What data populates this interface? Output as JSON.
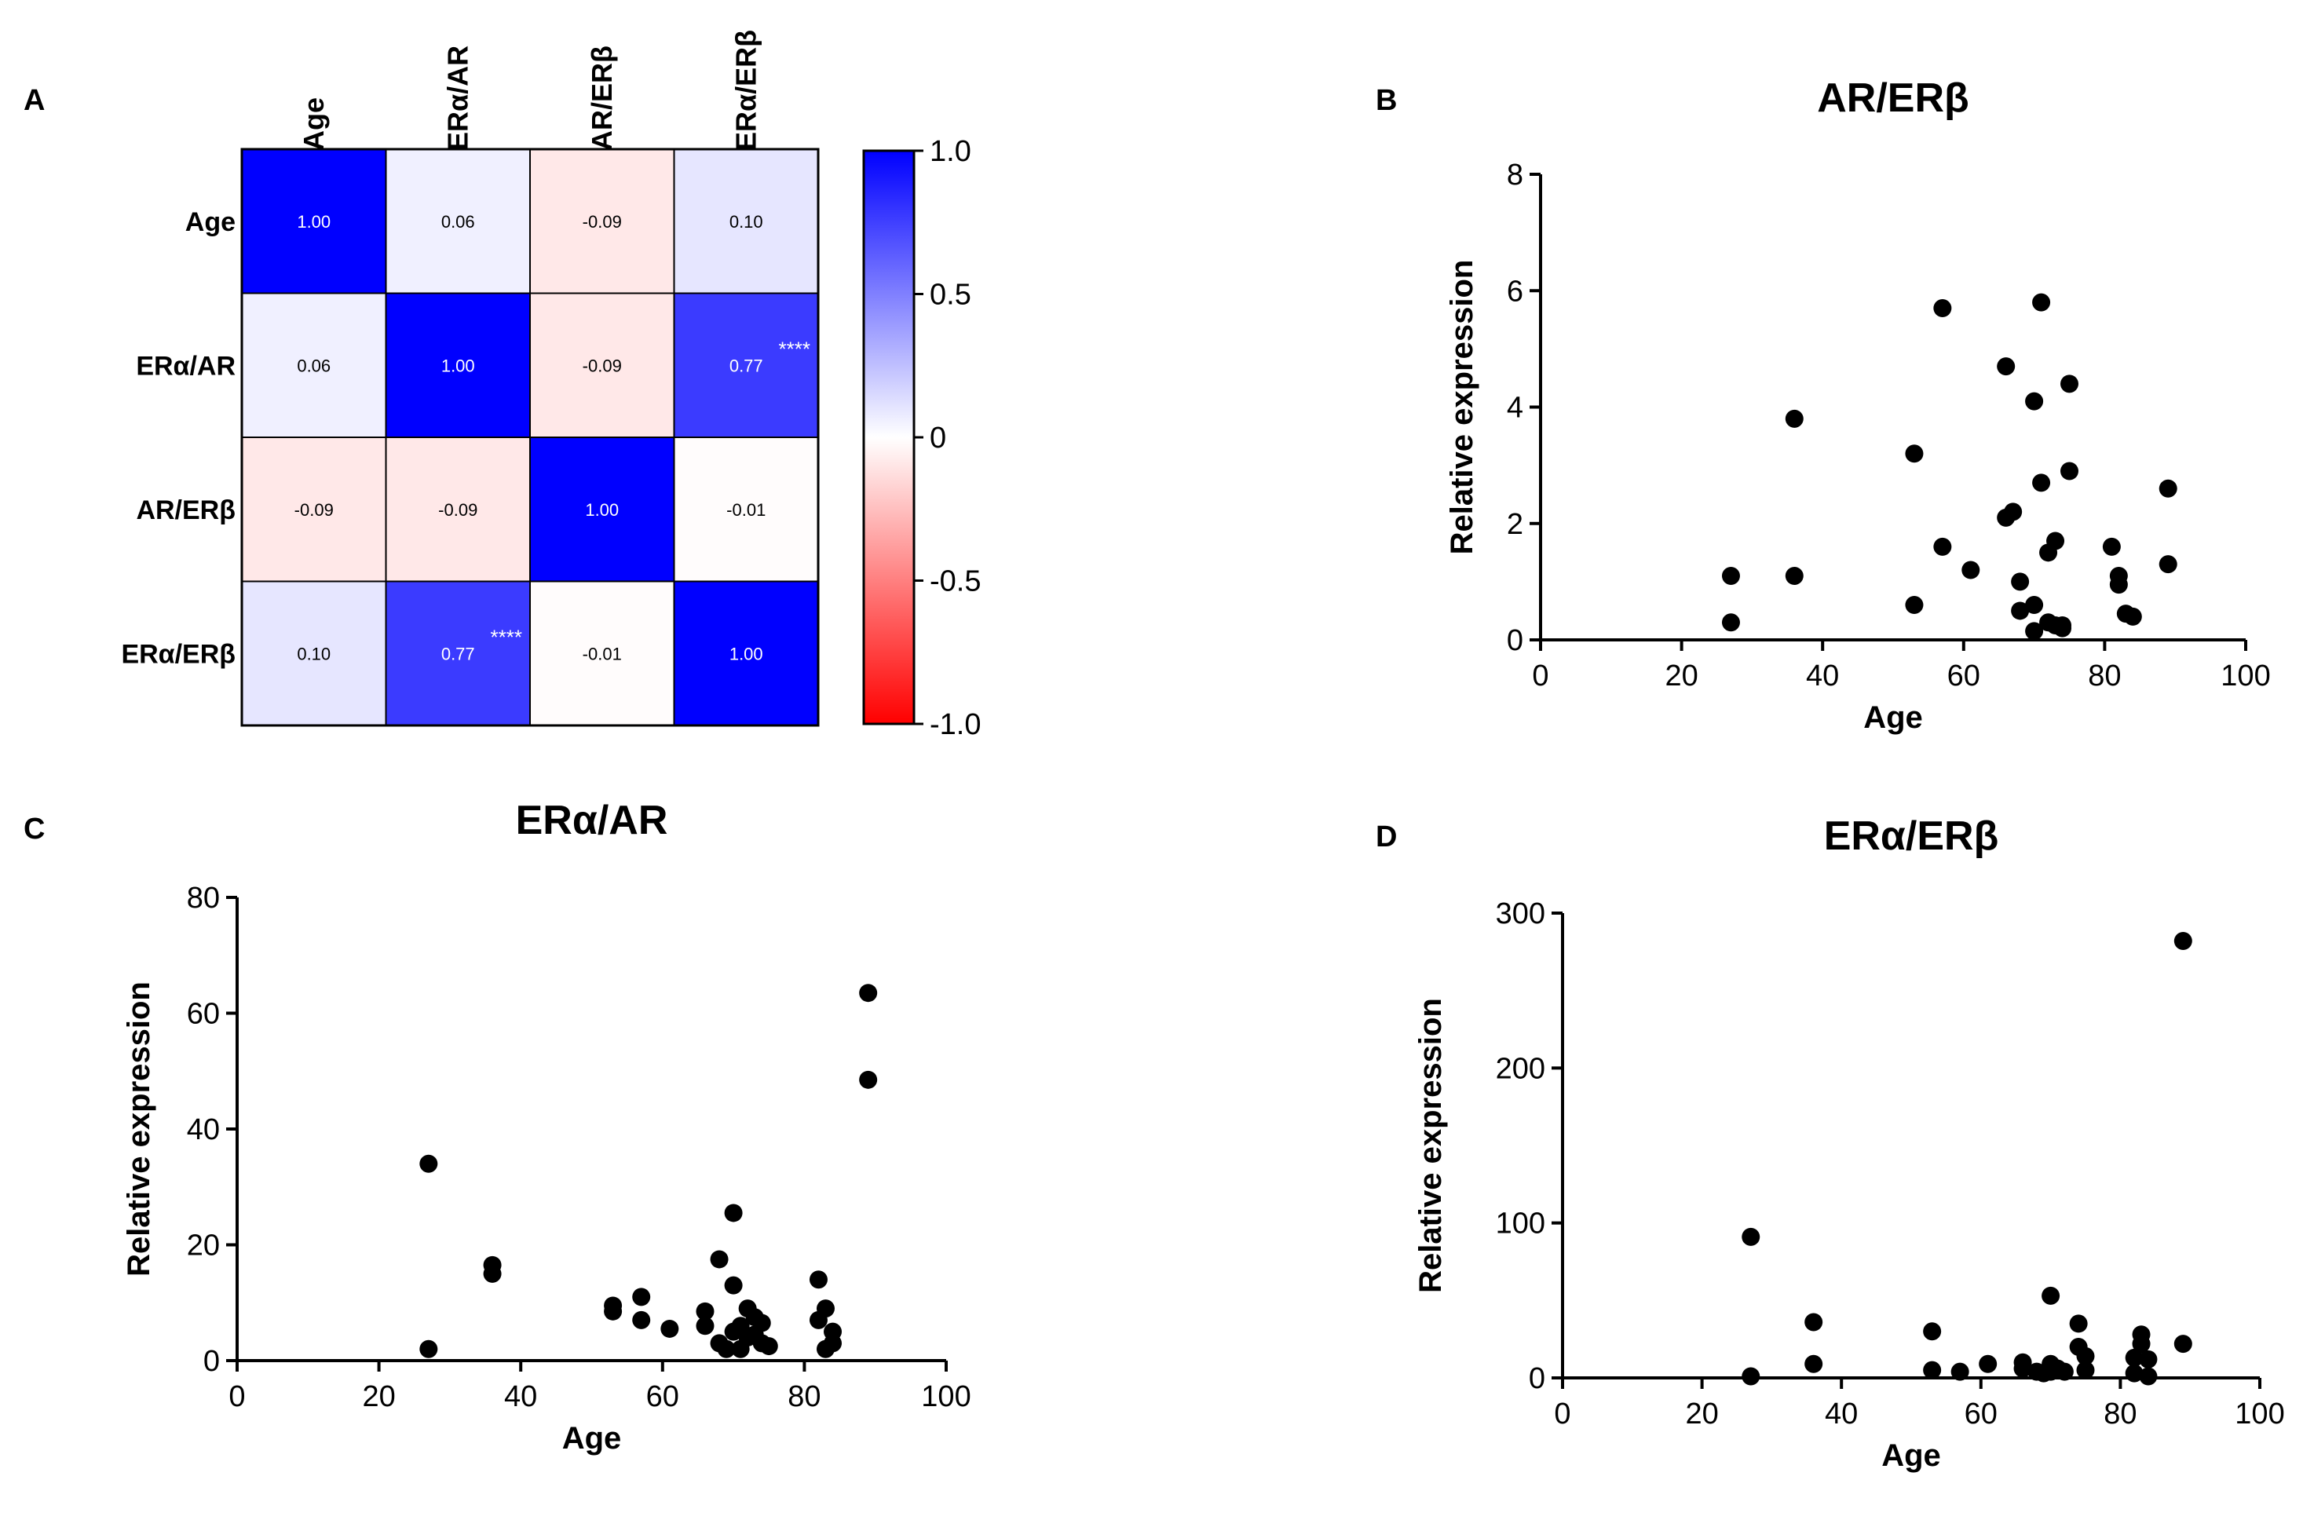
{
  "panels": {
    "A": "A",
    "B": "B",
    "C": "C",
    "D": "D"
  },
  "colors": {
    "positive": "#0000ff",
    "zero": "#ffffff",
    "negative": "#ff0000",
    "points": "#000000"
  },
  "chart_data": [
    {
      "panel": "A",
      "type": "heatmap",
      "title": "",
      "columns": [
        "Age",
        "ERα/AR",
        "AR/ERβ",
        "ERα/ERβ"
      ],
      "rows": [
        "Age",
        "ERα/AR",
        "AR/ERβ",
        "ERα/ERβ"
      ],
      "values": [
        [
          1.0,
          0.06,
          -0.09,
          0.1
        ],
        [
          0.06,
          1.0,
          -0.09,
          0.77
        ],
        [
          -0.09,
          -0.09,
          1.0,
          -0.01
        ],
        [
          0.1,
          0.77,
          -0.01,
          1.0
        ]
      ],
      "labels": [
        [
          "1.00",
          "0.06",
          "-0.09",
          "0.10"
        ],
        [
          "0.06",
          "1.00",
          "-0.09",
          "0.77"
        ],
        [
          "-0.09",
          "-0.09",
          "1.00",
          "-0.01"
        ],
        [
          "0.10",
          "0.77",
          "-0.01",
          "1.00"
        ]
      ],
      "significance": [
        [
          "",
          "",
          "",
          ""
        ],
        [
          "",
          "",
          "",
          "****"
        ],
        [
          "",
          "",
          "",
          ""
        ],
        [
          "",
          "****",
          "",
          ""
        ]
      ],
      "colorbar": {
        "range": [
          -1.0,
          1.0
        ],
        "ticks": [
          1.0,
          0.5,
          0,
          -0.5,
          -1.0
        ],
        "tick_labels": [
          "1.0",
          "0.5",
          "0",
          "-0.5",
          "-1.0"
        ]
      }
    },
    {
      "panel": "B",
      "type": "scatter",
      "title": "AR/ERβ",
      "xlabel": "Age",
      "ylabel": "Relative expression",
      "xlim": [
        0,
        100
      ],
      "ylim": [
        0,
        8
      ],
      "xticks": [
        0,
        20,
        40,
        60,
        80,
        100
      ],
      "yticks": [
        0,
        2,
        4,
        6,
        8
      ],
      "x": [
        27,
        27,
        36,
        36,
        53,
        53,
        57,
        57,
        61,
        66,
        66,
        67,
        68,
        68,
        70,
        70,
        70,
        71,
        71,
        72,
        72,
        73,
        73,
        74,
        74,
        75,
        75,
        81,
        82,
        82,
        83,
        84,
        89,
        89
      ],
      "y": [
        1.1,
        0.3,
        3.8,
        1.1,
        3.2,
        0.6,
        5.7,
        1.6,
        1.2,
        4.7,
        2.1,
        2.2,
        1.0,
        0.5,
        4.1,
        0.6,
        0.15,
        5.8,
        2.7,
        1.5,
        0.3,
        1.7,
        0.25,
        0.25,
        0.2,
        4.4,
        2.9,
        1.6,
        1.1,
        0.95,
        0.45,
        0.4,
        2.6,
        1.3
      ]
    },
    {
      "panel": "C",
      "type": "scatter",
      "title": "ERα/AR",
      "xlabel": "Age",
      "ylabel": "Relative expression",
      "xlim": [
        0,
        100
      ],
      "ylim": [
        0,
        80
      ],
      "xticks": [
        0,
        20,
        40,
        60,
        80,
        100
      ],
      "yticks": [
        0,
        20,
        40,
        60,
        80
      ],
      "x": [
        27,
        27,
        36,
        36,
        53,
        53,
        57,
        57,
        61,
        66,
        66,
        68,
        68,
        69,
        70,
        70,
        70,
        71,
        71,
        72,
        72,
        73,
        73,
        74,
        74,
        75,
        82,
        82,
        83,
        83,
        84,
        84,
        89,
        89
      ],
      "y": [
        34,
        2,
        16.5,
        15,
        9.5,
        8.5,
        11,
        7,
        5.5,
        8.5,
        6,
        17.5,
        3,
        2,
        25.5,
        13,
        5,
        6,
        2,
        9,
        4,
        7.5,
        4.5,
        6.5,
        3,
        2.5,
        14,
        7,
        9,
        2,
        5,
        3,
        63.5,
        48.5
      ]
    },
    {
      "panel": "D",
      "type": "scatter",
      "title": "ERα/ERβ",
      "xlabel": "Age",
      "ylabel": "Relative expression",
      "xlim": [
        0,
        100
      ],
      "ylim": [
        0,
        300
      ],
      "xticks": [
        0,
        20,
        40,
        60,
        80,
        100
      ],
      "yticks": [
        0,
        100,
        200,
        300
      ],
      "x": [
        27,
        27,
        36,
        36,
        53,
        53,
        57,
        61,
        66,
        66,
        68,
        69,
        70,
        70,
        70,
        71,
        72,
        74,
        74,
        75,
        75,
        82,
        82,
        83,
        83,
        84,
        84,
        89,
        89
      ],
      "y": [
        91,
        1,
        36,
        9,
        30,
        5,
        4,
        9,
        10,
        6,
        4,
        3,
        53,
        9,
        4,
        6,
        4,
        35,
        20,
        14,
        5,
        13,
        3,
        28,
        22,
        12,
        1,
        282,
        22
      ]
    }
  ]
}
